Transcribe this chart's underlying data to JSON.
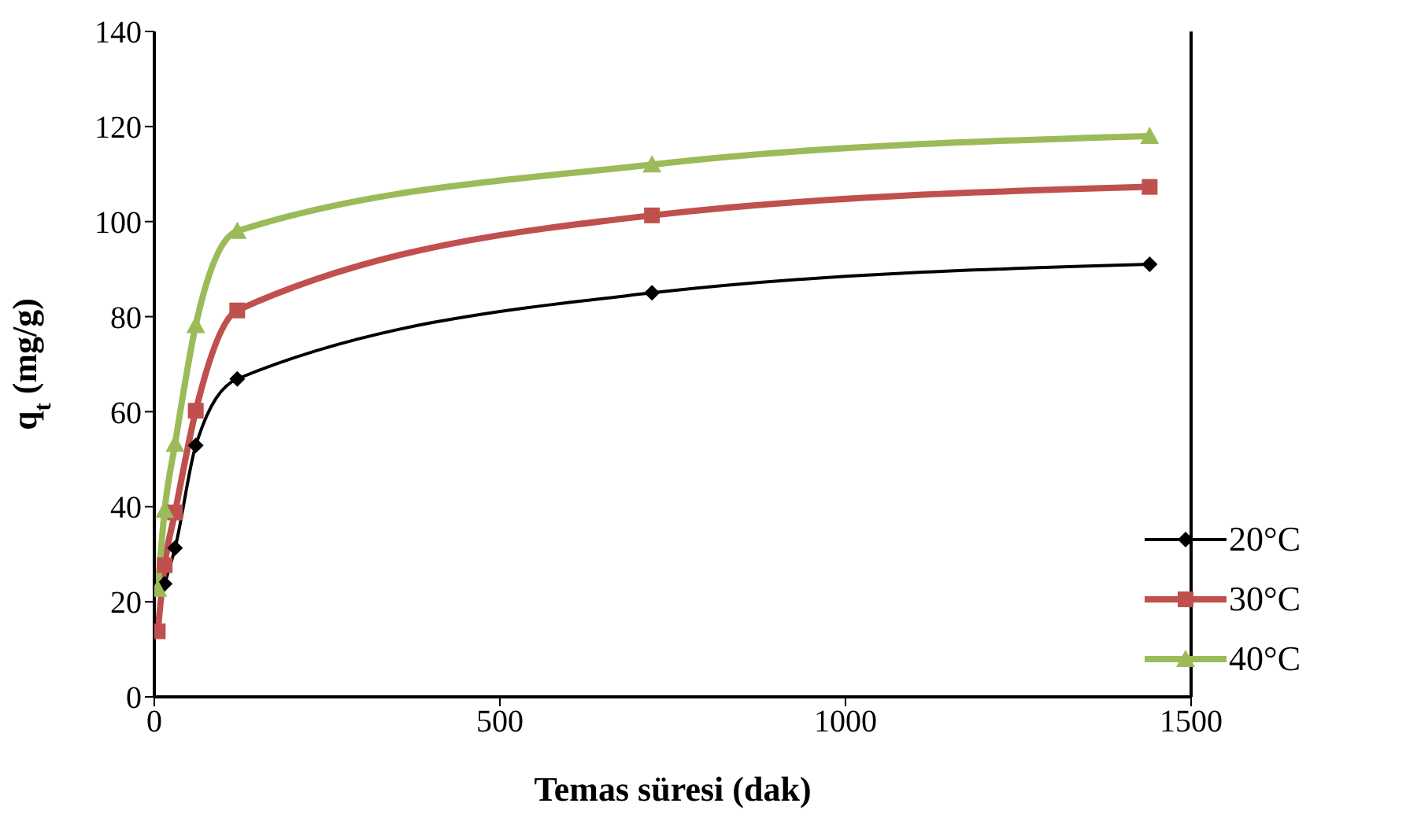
{
  "chart_data": {
    "type": "line",
    "xlabel": "Temas süresi (dak)",
    "ylabel": "q$_{t}$ (mg/g)",
    "xlim": [
      0,
      1500
    ],
    "xticks": [
      0,
      500,
      1000,
      1500
    ],
    "ylim": [
      0,
      140
    ],
    "yticks": [
      0,
      20,
      40,
      60,
      80,
      100,
      120,
      140
    ],
    "legend": "bottom right",
    "series": [
      {
        "name": "20°C",
        "color": "#000000",
        "marker": "diamond",
        "x": [
          15,
          30,
          60,
          120,
          720,
          1440
        ],
        "values": [
          23.8,
          31.3,
          52.9,
          66.9,
          85,
          91
        ]
      },
      {
        "name": "30°C",
        "color": "#c0504d",
        "marker": "square",
        "x": [
          5,
          15,
          30,
          60,
          120,
          720,
          1440
        ],
        "values": [
          13.8,
          27.7,
          38.8,
          60.2,
          81.3,
          101.3,
          107.3
        ]
      },
      {
        "name": "40°C",
        "color": "#9bbb59",
        "marker": "triangle",
        "x": [
          5,
          15,
          30,
          60,
          120,
          720,
          1440
        ],
        "values": [
          22.7,
          39.3,
          53.2,
          78.2,
          98,
          112,
          118
        ]
      }
    ]
  }
}
